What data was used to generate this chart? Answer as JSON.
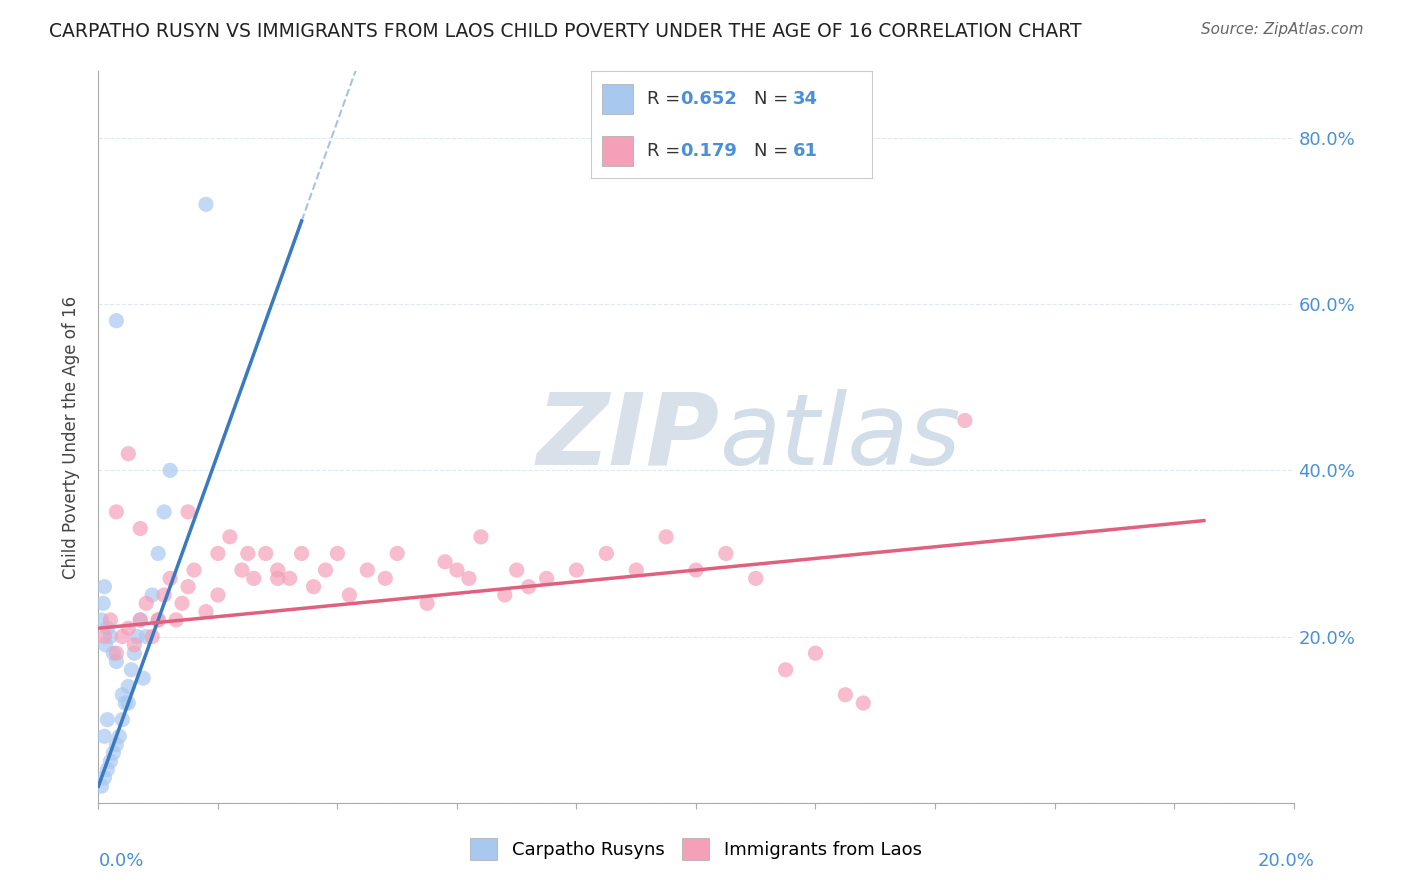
{
  "title": "CARPATHO RUSYN VS IMMIGRANTS FROM LAOS CHILD POVERTY UNDER THE AGE OF 16 CORRELATION CHART",
  "source": "Source: ZipAtlas.com",
  "ylabel": "Child Poverty Under the Age of 16",
  "legend_label1": "Carpatho Rusyns",
  "legend_label2": "Immigrants from Laos",
  "R1": 0.652,
  "N1": 34,
  "R2": 0.179,
  "N2": 61,
  "color1": "#a8c8f0",
  "color2": "#f4a0b8",
  "line_color1": "#3a7abf",
  "line_color2": "#e06080",
  "watermark_zip": "ZIP",
  "watermark_atlas": "atlas",
  "watermark_color_zip": "#c0ccd8",
  "watermark_color_atlas": "#a8bfd4",
  "blue_color": "#4a90d9",
  "xlim": [
    0,
    0.2
  ],
  "ylim": [
    0,
    0.88
  ],
  "yticks": [
    0.0,
    0.2,
    0.4,
    0.6,
    0.8
  ],
  "ytick_labels": [
    "",
    "20.0%",
    "40.0%",
    "60.0%",
    "80.0%"
  ],
  "background_color": "#ffffff",
  "grid_color": "#d8e4ec",
  "carpatho_x": [
    0.0005,
    0.001,
    0.0015,
    0.002,
    0.0025,
    0.003,
    0.0035,
    0.004,
    0.0045,
    0.005,
    0.0055,
    0.006,
    0.0065,
    0.007,
    0.0075,
    0.008,
    0.009,
    0.01,
    0.011,
    0.012,
    0.0005,
    0.0008,
    0.001,
    0.0012,
    0.0015,
    0.002,
    0.0025,
    0.003,
    0.004,
    0.005,
    0.001,
    0.0015,
    0.018,
    0.003
  ],
  "carpatho_y": [
    0.02,
    0.03,
    0.04,
    0.05,
    0.06,
    0.07,
    0.08,
    0.1,
    0.12,
    0.14,
    0.16,
    0.18,
    0.2,
    0.22,
    0.15,
    0.2,
    0.25,
    0.3,
    0.35,
    0.4,
    0.22,
    0.24,
    0.26,
    0.19,
    0.21,
    0.2,
    0.18,
    0.17,
    0.13,
    0.12,
    0.08,
    0.1,
    0.72,
    0.58
  ],
  "laos_x": [
    0.001,
    0.002,
    0.003,
    0.004,
    0.005,
    0.006,
    0.007,
    0.008,
    0.009,
    0.01,
    0.011,
    0.012,
    0.013,
    0.014,
    0.015,
    0.016,
    0.018,
    0.02,
    0.022,
    0.024,
    0.026,
    0.028,
    0.03,
    0.032,
    0.034,
    0.036,
    0.038,
    0.04,
    0.042,
    0.045,
    0.048,
    0.05,
    0.055,
    0.058,
    0.06,
    0.062,
    0.064,
    0.068,
    0.07,
    0.072,
    0.075,
    0.08,
    0.085,
    0.09,
    0.095,
    0.1,
    0.105,
    0.11,
    0.115,
    0.12,
    0.125,
    0.128,
    0.003,
    0.005,
    0.007,
    0.01,
    0.015,
    0.02,
    0.025,
    0.03,
    0.145
  ],
  "laos_y": [
    0.2,
    0.22,
    0.18,
    0.2,
    0.21,
    0.19,
    0.22,
    0.24,
    0.2,
    0.22,
    0.25,
    0.27,
    0.22,
    0.24,
    0.26,
    0.28,
    0.23,
    0.3,
    0.32,
    0.28,
    0.27,
    0.3,
    0.28,
    0.27,
    0.3,
    0.26,
    0.28,
    0.3,
    0.25,
    0.28,
    0.27,
    0.3,
    0.24,
    0.29,
    0.28,
    0.27,
    0.32,
    0.25,
    0.28,
    0.26,
    0.27,
    0.28,
    0.3,
    0.28,
    0.32,
    0.28,
    0.3,
    0.27,
    0.16,
    0.18,
    0.13,
    0.12,
    0.35,
    0.42,
    0.33,
    0.22,
    0.35,
    0.25,
    0.3,
    0.27,
    0.46
  ]
}
